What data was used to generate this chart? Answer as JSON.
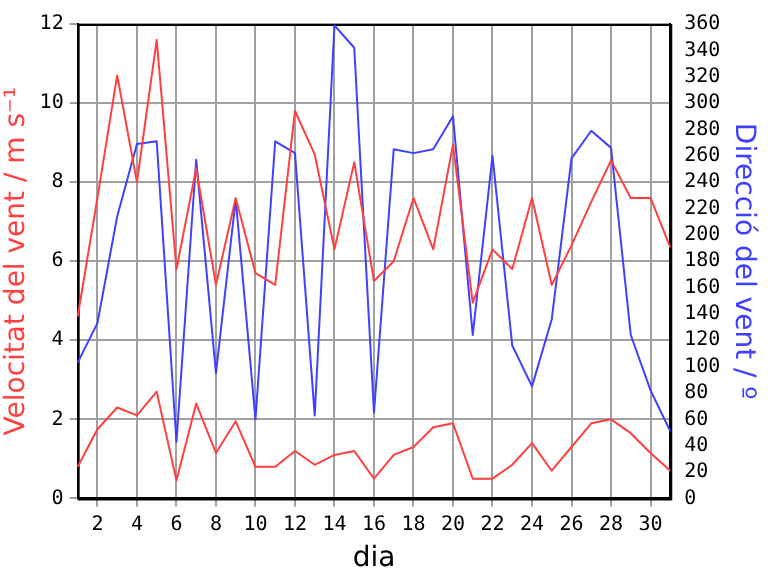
{
  "chart_data": {
    "type": "line",
    "xlabel": "dia",
    "ylabel": "Velocitat del vent / m s⁻¹",
    "y2label": "Direcció del vent / º",
    "x": [
      1,
      2,
      3,
      4,
      5,
      6,
      7,
      8,
      9,
      10,
      11,
      12,
      13,
      14,
      15,
      16,
      17,
      18,
      19,
      20,
      21,
      22,
      23,
      24,
      25,
      26,
      27,
      28,
      29,
      30,
      31
    ],
    "xlim": [
      1,
      31
    ],
    "xticks": [
      2,
      4,
      6,
      8,
      10,
      12,
      14,
      16,
      18,
      20,
      22,
      24,
      26,
      28,
      30
    ],
    "ylim": [
      0,
      12
    ],
    "yticks": [
      0,
      2,
      4,
      6,
      8,
      10,
      12
    ],
    "y2lim": [
      0,
      360
    ],
    "y2ticks": [
      0,
      20,
      40,
      60,
      80,
      100,
      120,
      140,
      160,
      180,
      200,
      220,
      240,
      260,
      280,
      300,
      320,
      340,
      360
    ],
    "grid": true,
    "marker": "none",
    "line_style": "solid",
    "series": [
      {
        "color": "#ff4040",
        "values": [
          4.6,
          7.6,
          10.7,
          8.0,
          11.6,
          5.8,
          8.35,
          5.4,
          7.6,
          5.7,
          5.4,
          9.8,
          8.7,
          6.3,
          8.5,
          5.5,
          6.0,
          7.6,
          6.3,
          8.95,
          4.95,
          6.3,
          5.8,
          7.6,
          5.4,
          6.4,
          7.5,
          8.55,
          7.6,
          7.6,
          6.35
        ]
      },
      {
        "color": "#ff4040",
        "values": [
          0.8,
          1.75,
          2.3,
          2.1,
          2.7,
          0.45,
          2.4,
          1.15,
          1.95,
          0.8,
          0.8,
          1.2,
          0.85,
          1.1,
          1.2,
          0.5,
          1.1,
          1.3,
          1.8,
          1.9,
          0.5,
          0.5,
          0.85,
          1.4,
          0.7,
          1.3,
          1.9,
          2.0,
          1.65,
          1.15,
          0.7
        ]
      },
      {
        "color": "#4040ff",
        "axis": "y2",
        "values": [
          103,
          133,
          214,
          269,
          271,
          43,
          257,
          95,
          227,
          60,
          271,
          262,
          63,
          359,
          342,
          65,
          265,
          262,
          265,
          290,
          124,
          260,
          116,
          85,
          136,
          258,
          279,
          266,
          124,
          82,
          51
        ]
      }
    ]
  }
}
